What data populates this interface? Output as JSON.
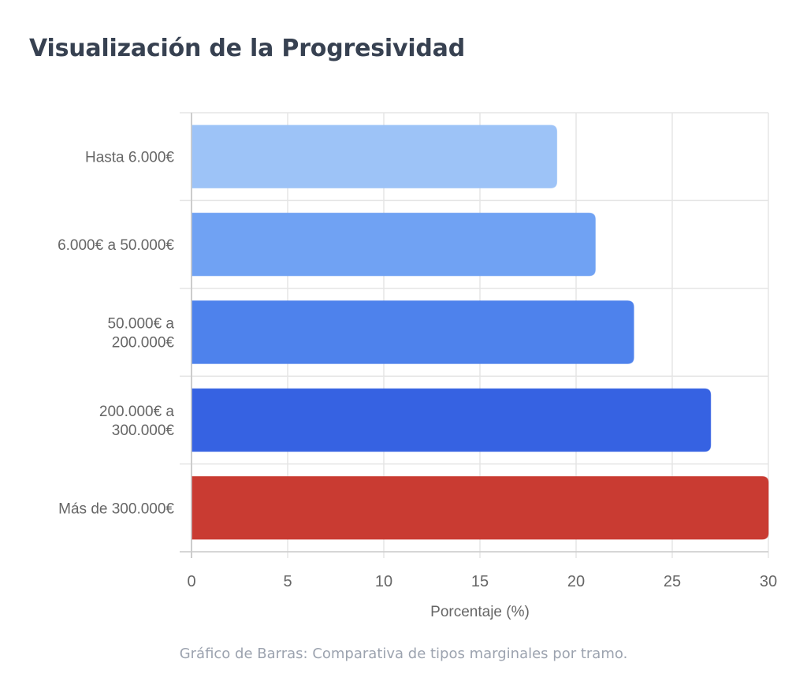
{
  "page": {
    "title": "Visualización de la Progresividad",
    "caption": "Gráfico de Barras: Comparativa de tipos marginales por tramo."
  },
  "chart_data": {
    "type": "bar",
    "orientation": "horizontal",
    "title": "Visualización de la Progresividad",
    "xlabel": "Porcentaje (%)",
    "ylabel": "",
    "xlim": [
      0,
      30
    ],
    "x_ticks": [
      0,
      5,
      10,
      15,
      20,
      25,
      30
    ],
    "grid": true,
    "legend": null,
    "categories": [
      "Hasta 6.000€",
      "6.000€ a 50.000€",
      "50.000€ a 200.000€",
      "200.000€ a 300.000€",
      "Más de 300.000€"
    ],
    "category_label_lines": [
      [
        "Hasta 6.000€"
      ],
      [
        "6.000€ a 50.000€"
      ],
      [
        "50.000€ a",
        "200.000€"
      ],
      [
        "200.000€ a",
        "300.000€"
      ],
      [
        "Más de 300.000€"
      ]
    ],
    "values": [
      19,
      21,
      23,
      27,
      30
    ],
    "colors": [
      "#9DC3F7",
      "#70A2F3",
      "#4E82EC",
      "#3662E2",
      "#C93B32"
    ],
    "caption": "Gráfico de Barras: Comparativa de tipos marginales por tramo."
  },
  "style": {
    "grid_color": "#e5e5e5",
    "axis_color": "#cccccc",
    "tick_label_color": "#666666",
    "title_color": "#374151",
    "caption_color": "#9ca3af"
  }
}
